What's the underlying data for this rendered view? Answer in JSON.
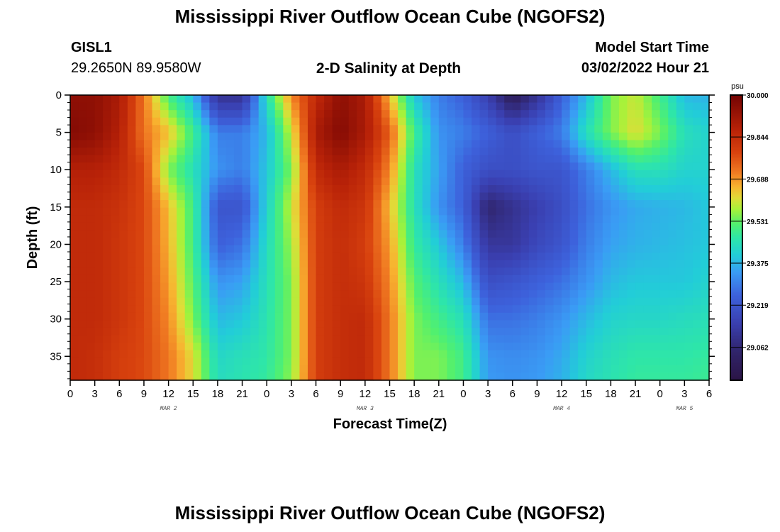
{
  "header": {
    "title": "Mississippi River Outflow Ocean Cube (NGOFS2)",
    "station": "GISL1",
    "coords": "29.2650N  89.9580W",
    "subtitle": "2-D Salinity at Depth",
    "model_start_label": "Model Start Time",
    "model_start_value": "03/02/2022 Hour 21"
  },
  "footer": {
    "title": "Mississippi River Outflow Ocean Cube (NGOFS2)"
  },
  "chart_data": {
    "type": "heatmap",
    "title": "2-D Salinity at Depth",
    "xlabel": "Forecast Time(Z)",
    "ylabel": "Depth (ft)",
    "x_hours": [
      0,
      3,
      6,
      9,
      12,
      15,
      18,
      21,
      24,
      27,
      30,
      33,
      36,
      39,
      42,
      45,
      48,
      51,
      54,
      57,
      60,
      63,
      66,
      69,
      72,
      75,
      78
    ],
    "x_tick_labels": [
      "0",
      "3",
      "6",
      "9",
      "12",
      "15",
      "18",
      "21",
      "0",
      "3",
      "6",
      "9",
      "12",
      "15",
      "18",
      "21",
      "0",
      "3",
      "6",
      "9",
      "12",
      "15",
      "18",
      "21",
      "0",
      "3",
      "6"
    ],
    "date_labels": [
      {
        "hour": 12,
        "text": "MAR 2"
      },
      {
        "hour": 36,
        "text": "MAR 3"
      },
      {
        "hour": 60,
        "text": "MAR 4"
      },
      {
        "hour": 75,
        "text": "MAR 5"
      }
    ],
    "depths": [
      0,
      5,
      10,
      15,
      20,
      25,
      30,
      35,
      38.2
    ],
    "y_tick_labels": [
      "0",
      "5",
      "10",
      "15",
      "20",
      "25",
      "30",
      "35"
    ],
    "ylim": [
      38.2,
      0
    ],
    "xlim": [
      0,
      78
    ],
    "values": [
      [
        29.95,
        29.97,
        29.88,
        29.85,
        29.85,
        29.85,
        29.85,
        29.85,
        29.85
      ],
      [
        29.95,
        29.95,
        29.88,
        29.85,
        29.85,
        29.85,
        29.85,
        29.84,
        29.84
      ],
      [
        29.9,
        29.88,
        29.85,
        29.83,
        29.82,
        29.82,
        29.82,
        29.8,
        29.8
      ],
      [
        29.72,
        29.72,
        29.78,
        29.78,
        29.78,
        29.78,
        29.78,
        29.78,
        29.78
      ],
      [
        29.5,
        29.65,
        29.55,
        29.65,
        29.66,
        29.68,
        29.7,
        29.72,
        29.72
      ],
      [
        29.38,
        29.5,
        29.45,
        29.5,
        29.5,
        29.52,
        29.55,
        29.62,
        29.62
      ],
      [
        29.1,
        29.3,
        29.33,
        29.22,
        29.25,
        29.33,
        29.38,
        29.43,
        29.44
      ],
      [
        29.1,
        29.3,
        29.3,
        29.22,
        29.28,
        29.35,
        29.4,
        29.45,
        29.46
      ],
      [
        29.45,
        29.38,
        29.4,
        29.42,
        29.44,
        29.45,
        29.46,
        29.47,
        29.48
      ],
      [
        29.7,
        29.6,
        29.55,
        29.6,
        29.57,
        29.55,
        29.55,
        29.55,
        29.56
      ],
      [
        29.85,
        29.9,
        29.85,
        29.8,
        29.8,
        29.8,
        29.8,
        29.8,
        29.8
      ],
      [
        29.95,
        29.97,
        29.9,
        29.85,
        29.84,
        29.84,
        29.84,
        29.84,
        29.84
      ],
      [
        29.9,
        29.9,
        29.85,
        29.82,
        29.8,
        29.82,
        29.85,
        29.85,
        29.85
      ],
      [
        29.65,
        29.75,
        29.7,
        29.65,
        29.68,
        29.7,
        29.72,
        29.72,
        29.72
      ],
      [
        29.4,
        29.5,
        29.45,
        29.45,
        29.48,
        29.52,
        29.55,
        29.55,
        29.55
      ],
      [
        29.3,
        29.33,
        29.35,
        29.33,
        29.4,
        29.45,
        29.5,
        29.55,
        29.55
      ],
      [
        29.25,
        29.3,
        29.25,
        29.25,
        29.3,
        29.38,
        29.45,
        29.5,
        29.5
      ],
      [
        29.15,
        29.25,
        29.2,
        29.05,
        29.12,
        29.2,
        29.28,
        29.33,
        29.34
      ],
      [
        29.0,
        29.2,
        29.2,
        29.1,
        29.12,
        29.22,
        29.28,
        29.32,
        29.33
      ],
      [
        29.1,
        29.25,
        29.22,
        29.15,
        29.18,
        29.25,
        29.3,
        29.33,
        29.34
      ],
      [
        29.25,
        29.3,
        29.22,
        29.2,
        29.22,
        29.28,
        29.33,
        29.36,
        29.37
      ],
      [
        29.38,
        29.45,
        29.3,
        29.28,
        29.3,
        29.33,
        29.38,
        29.42,
        29.43
      ],
      [
        29.55,
        29.55,
        29.38,
        29.33,
        29.35,
        29.38,
        29.42,
        29.45,
        29.46
      ],
      [
        29.6,
        29.62,
        29.45,
        29.36,
        29.37,
        29.4,
        29.43,
        29.47,
        29.48
      ],
      [
        29.5,
        29.55,
        29.45,
        29.37,
        29.38,
        29.4,
        29.43,
        29.47,
        29.48
      ],
      [
        29.38,
        29.45,
        29.42,
        29.38,
        29.39,
        29.4,
        29.44,
        29.47,
        29.48
      ],
      [
        29.37,
        29.42,
        29.42,
        29.4,
        29.4,
        29.42,
        29.45,
        29.48,
        29.49
      ]
    ],
    "colorbar": {
      "units": "psu",
      "range": [
        28.94,
        30.0
      ],
      "ticks": [
        "30.000",
        "29.844",
        "29.688",
        "29.531",
        "29.375",
        "29.219",
        "29.062"
      ],
      "tick_values": [
        30.0,
        29.844,
        29.688,
        29.531,
        29.375,
        29.219,
        29.062
      ],
      "colormap_stops": [
        [
          0.0,
          "#2b1445"
        ],
        [
          0.1,
          "#30246a"
        ],
        [
          0.2,
          "#3a3fb0"
        ],
        [
          0.3,
          "#3d62dc"
        ],
        [
          0.38,
          "#3a9cf5"
        ],
        [
          0.44,
          "#22cdd8"
        ],
        [
          0.5,
          "#2ee6a8"
        ],
        [
          0.55,
          "#52f06e"
        ],
        [
          0.6,
          "#a6f23a"
        ],
        [
          0.64,
          "#e0dc38"
        ],
        [
          0.68,
          "#f8b330"
        ],
        [
          0.73,
          "#f07a22"
        ],
        [
          0.8,
          "#d8420e"
        ],
        [
          0.88,
          "#b82208"
        ],
        [
          1.0,
          "#740403"
        ]
      ]
    }
  }
}
